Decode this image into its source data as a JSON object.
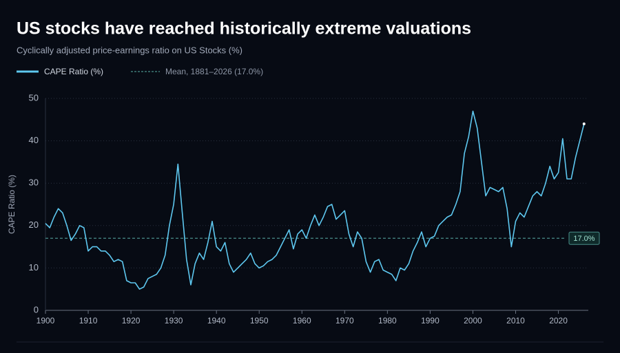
{
  "chart_data": {
    "type": "line",
    "title": "US stocks have reached historically extreme valuations",
    "subtitle": "Cyclically adjusted price-earnings ratio on US Stocks (%)",
    "y_label": "CAPE Ratio (%)",
    "x": [
      1900,
      1901,
      1902,
      1903,
      1904,
      1905,
      1906,
      1907,
      1908,
      1909,
      1910,
      1911,
      1912,
      1913,
      1914,
      1915,
      1916,
      1917,
      1918,
      1919,
      1920,
      1921,
      1922,
      1923,
      1924,
      1925,
      1926,
      1927,
      1928,
      1929,
      1930,
      1931,
      1932,
      1933,
      1934,
      1935,
      1936,
      1937,
      1938,
      1939,
      1940,
      1941,
      1942,
      1943,
      1944,
      1945,
      1946,
      1947,
      1948,
      1949,
      1950,
      1951,
      1952,
      1953,
      1954,
      1955,
      1956,
      1957,
      1958,
      1959,
      1960,
      1961,
      1962,
      1963,
      1964,
      1965,
      1966,
      1967,
      1968,
      1969,
      1970,
      1971,
      1972,
      1973,
      1974,
      1975,
      1976,
      1977,
      1978,
      1979,
      1980,
      1981,
      1982,
      1983,
      1984,
      1985,
      1986,
      1987,
      1988,
      1989,
      1990,
      1991,
      1992,
      1993,
      1994,
      1995,
      1996,
      1997,
      1998,
      1999,
      2000,
      2001,
      2002,
      2003,
      2004,
      2005,
      2006,
      2007,
      2008,
      2009,
      2010,
      2011,
      2012,
      2013,
      2014,
      2015,
      2016,
      2017,
      2018,
      2019,
      2020,
      2021,
      2022,
      2023,
      2024,
      2025,
      2026
    ],
    "series": [
      {
        "name": "CAPE Ratio (%)",
        "color": "#5ec8f0",
        "values": [
          20.5,
          19.5,
          22,
          24,
          23,
          20,
          16.5,
          18,
          20,
          19.5,
          14,
          15,
          15,
          14,
          14,
          13,
          11.5,
          12,
          11.5,
          7,
          6.5,
          6.5,
          5,
          5.5,
          7.5,
          8,
          8.5,
          10,
          13,
          20,
          25,
          34.5,
          23,
          12,
          6,
          11,
          13.5,
          12,
          16,
          21,
          15,
          14,
          16,
          11,
          9,
          10,
          11,
          12,
          13.5,
          11,
          10,
          10.5,
          11.5,
          12,
          13,
          15,
          17,
          19,
          14.5,
          18,
          19,
          17,
          20,
          22.5,
          20,
          22,
          24.5,
          25,
          21.5,
          22.5,
          23.5,
          18,
          15,
          18.5,
          17,
          11.5,
          9,
          11.5,
          12,
          9.5,
          9,
          8.5,
          7,
          10,
          9.5,
          11,
          14,
          16,
          18.5,
          15,
          17,
          17.5,
          20,
          21,
          22,
          22.5,
          25,
          28,
          37,
          41,
          47,
          43,
          35,
          27,
          29,
          28.5,
          28,
          29,
          24,
          15,
          21,
          23,
          22,
          24.5,
          27,
          28,
          27,
          30,
          34,
          31,
          32.5,
          40.5,
          31,
          31,
          36,
          40,
          44
        ]
      }
    ],
    "reference_line": {
      "name": "Mean, 1881–2026 (17.0%)",
      "value": 17,
      "value_label": "17.0%",
      "color": "#4a8f8a"
    },
    "xlim": [
      1900,
      2027
    ],
    "xticks": [
      1900,
      1910,
      1920,
      1930,
      1940,
      1950,
      1960,
      1970,
      1980,
      1990,
      2000,
      2010,
      2020
    ],
    "ylim": [
      0,
      50
    ],
    "yticks": [
      0,
      10,
      20,
      30,
      40,
      50
    ],
    "grid": true
  }
}
